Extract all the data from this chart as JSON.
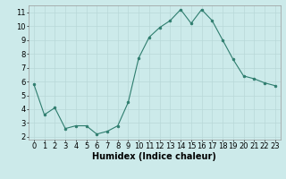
{
  "x": [
    0,
    1,
    2,
    3,
    4,
    5,
    6,
    7,
    8,
    9,
    10,
    11,
    12,
    13,
    14,
    15,
    16,
    17,
    18,
    19,
    20,
    21,
    22,
    23
  ],
  "y": [
    5.8,
    3.6,
    4.1,
    2.6,
    2.8,
    2.8,
    2.2,
    2.4,
    2.8,
    4.5,
    7.7,
    9.2,
    9.9,
    10.4,
    11.2,
    10.2,
    11.2,
    10.4,
    9.0,
    7.6,
    6.4,
    6.2,
    5.9,
    5.7
  ],
  "xlabel": "Humidex (Indice chaleur)",
  "bg_color": "#cceaea",
  "grid_color": "#b8d8d8",
  "line_color": "#2e7d6e",
  "marker_color": "#2e7d6e",
  "ylim": [
    1.8,
    11.5
  ],
  "xlim": [
    -0.5,
    23.5
  ],
  "yticks": [
    2,
    3,
    4,
    5,
    6,
    7,
    8,
    9,
    10,
    11
  ],
  "xticks": [
    0,
    1,
    2,
    3,
    4,
    5,
    6,
    7,
    8,
    9,
    10,
    11,
    12,
    13,
    14,
    15,
    16,
    17,
    18,
    19,
    20,
    21,
    22,
    23
  ],
  "tick_fontsize": 6,
  "xlabel_fontsize": 7
}
